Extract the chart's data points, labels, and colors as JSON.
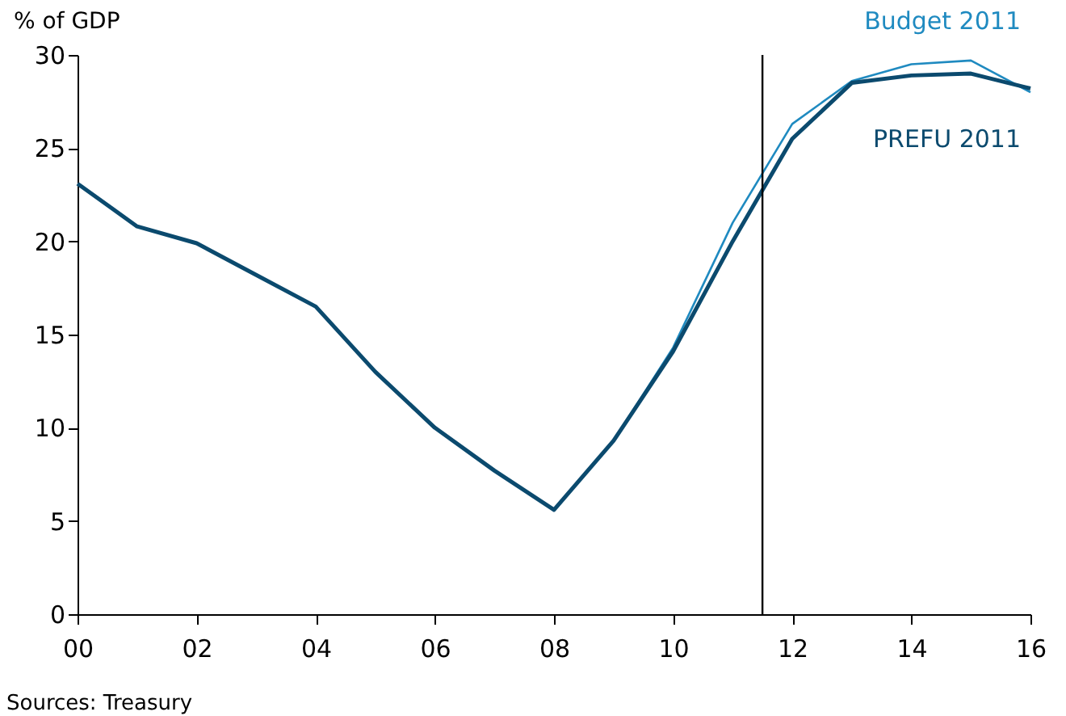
{
  "chart_data": {
    "type": "line",
    "ylabel": "% of GDP",
    "x": [
      2000,
      2001,
      2002,
      2003,
      2004,
      2005,
      2006,
      2007,
      2008,
      2009,
      2010,
      2011,
      2012,
      2013,
      2014,
      2015,
      2016
    ],
    "series": [
      {
        "name": "Budget 2011",
        "color": "#1f8ac0",
        "values": [
          null,
          null,
          null,
          null,
          null,
          null,
          null,
          null,
          null,
          9.3,
          14.3,
          21.0,
          26.3,
          28.6,
          29.5,
          29.7,
          28.0
        ]
      },
      {
        "name": "PREFU 2011",
        "color": "#0b4a6e",
        "values": [
          23.1,
          20.8,
          19.9,
          18.2,
          16.5,
          13.0,
          10.0,
          7.7,
          5.6,
          9.3,
          14.1,
          20.0,
          25.5,
          28.5,
          28.9,
          29.0,
          28.2
        ]
      }
    ],
    "xlim": [
      2000,
      2016
    ],
    "xticks": [
      {
        "value": 2000,
        "label": "00"
      },
      {
        "value": 2002,
        "label": "02"
      },
      {
        "value": 2004,
        "label": "04"
      },
      {
        "value": 2006,
        "label": "06"
      },
      {
        "value": 2008,
        "label": "08"
      },
      {
        "value": 2010,
        "label": "10"
      },
      {
        "value": 2012,
        "label": "12"
      },
      {
        "value": 2014,
        "label": "14"
      },
      {
        "value": 2016,
        "label": "16"
      }
    ],
    "ylim": [
      0,
      30
    ],
    "yticks": [
      0,
      5,
      10,
      15,
      20,
      25,
      30
    ],
    "ref_lines": [
      {
        "axis": "x",
        "value": 2011.5,
        "color": "#000000"
      }
    ],
    "annotations": [
      "Sources: Treasury"
    ],
    "grid": false,
    "legend": false,
    "marker": "none",
    "line_style": "solid"
  }
}
